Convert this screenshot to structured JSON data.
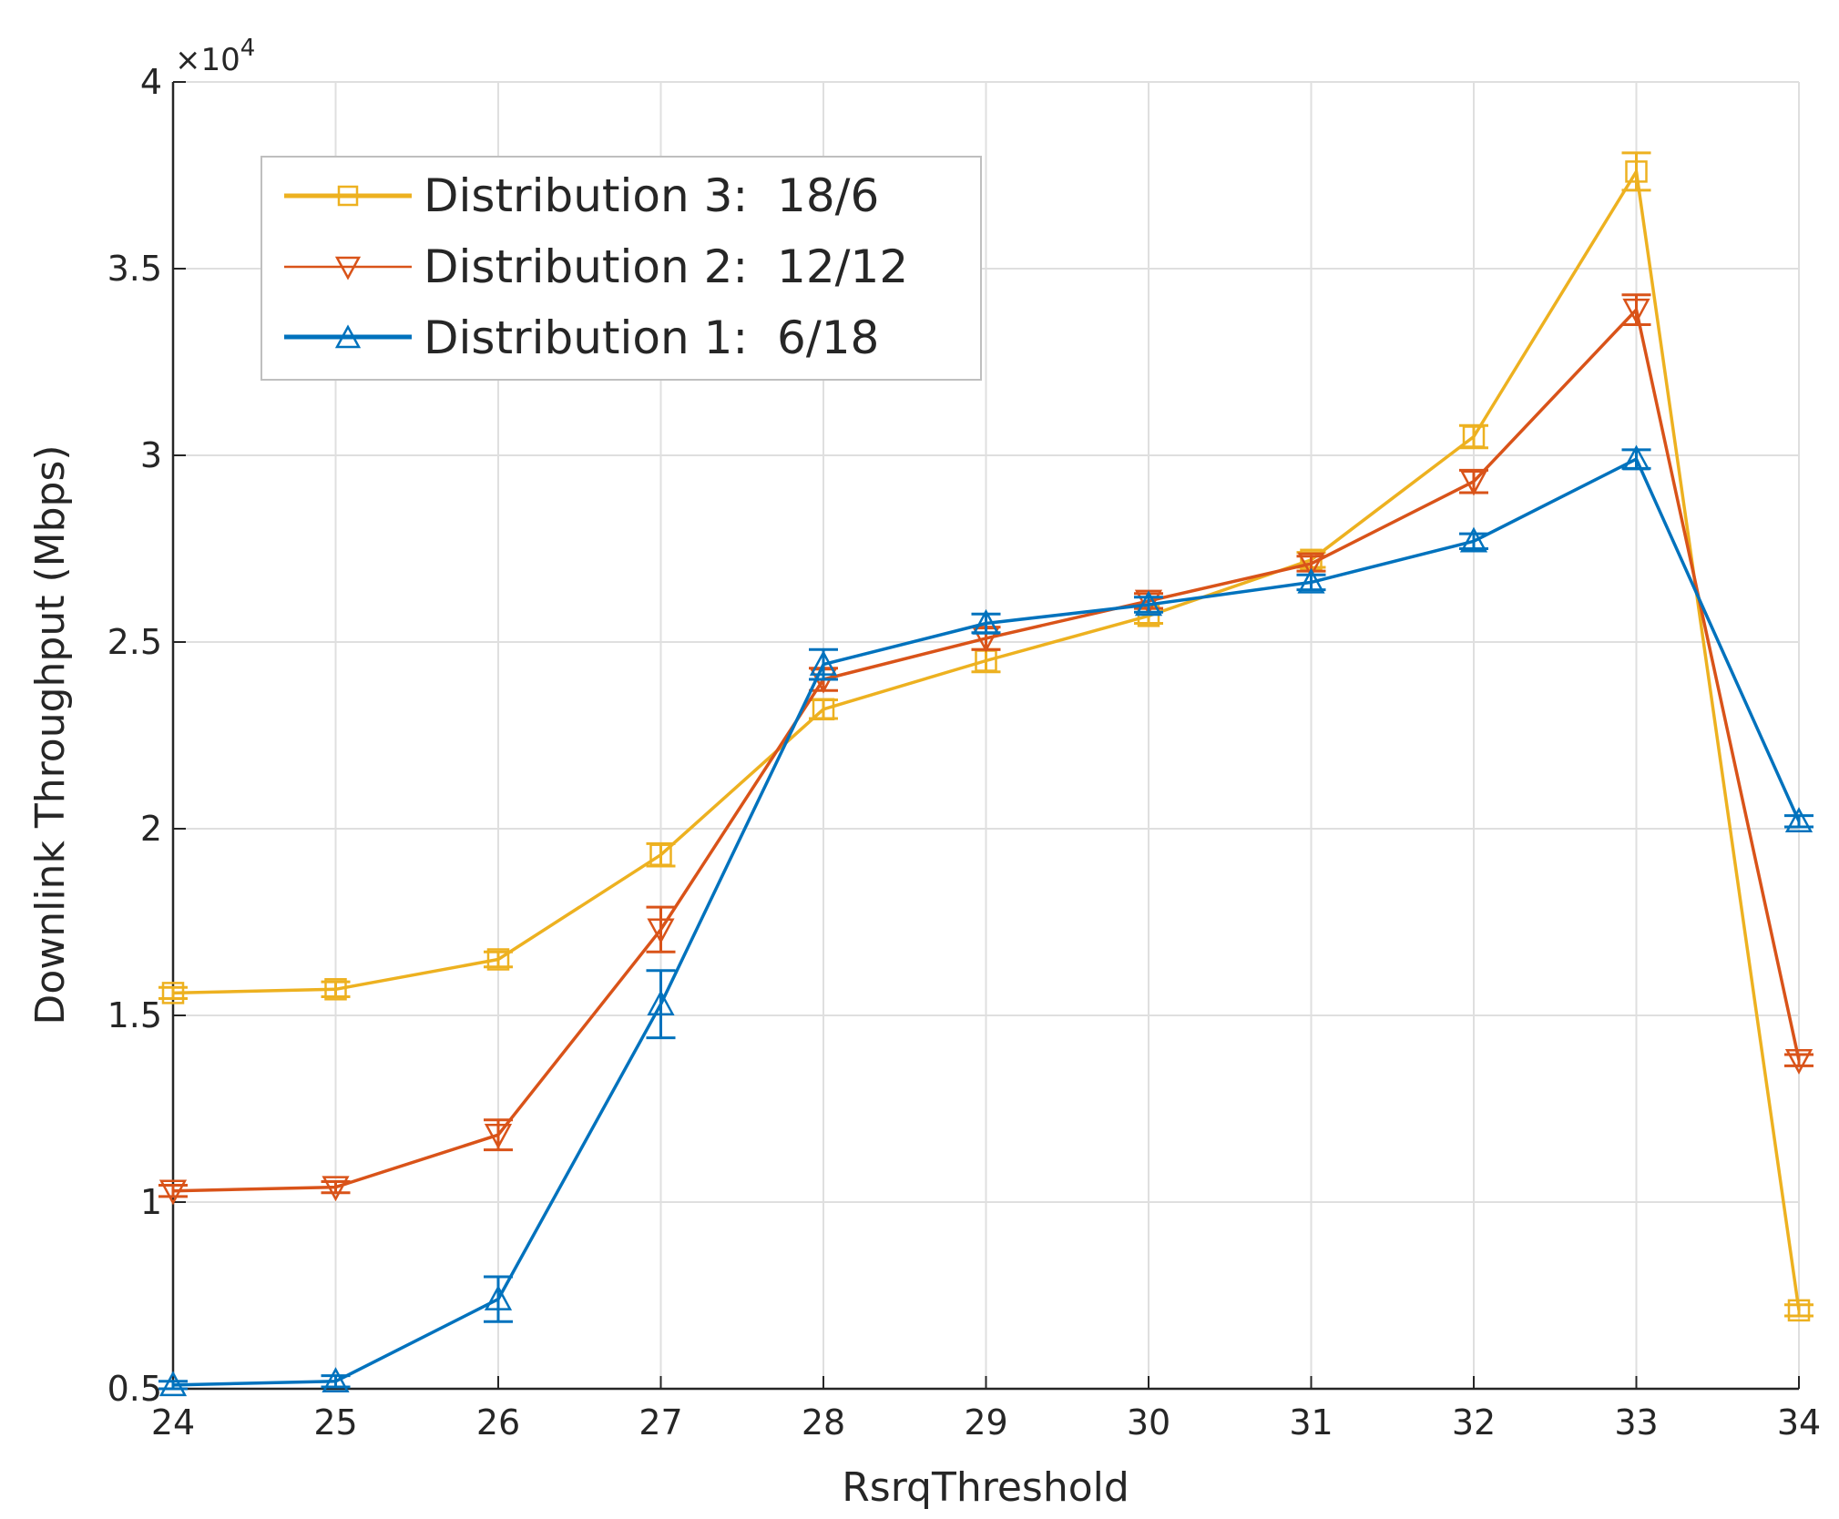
{
  "chart_data": {
    "type": "line",
    "title": "",
    "xlabel": "RsrqThreshold",
    "ylabel": "Downlink Throughput (Mbps)",
    "x": [
      24,
      25,
      26,
      27,
      28,
      29,
      30,
      31,
      32,
      33,
      34
    ],
    "xlim": [
      24,
      34
    ],
    "ylim": [
      5000,
      40000
    ],
    "y_scale_exponent_label": "×10",
    "y_scale_exponent_power": "4",
    "xticks": [
      {
        "value": 24,
        "label": "24"
      },
      {
        "value": 25,
        "label": "25"
      },
      {
        "value": 26,
        "label": "26"
      },
      {
        "value": 27,
        "label": "27"
      },
      {
        "value": 28,
        "label": "28"
      },
      {
        "value": 29,
        "label": "29"
      },
      {
        "value": 30,
        "label": "30"
      },
      {
        "value": 31,
        "label": "31"
      },
      {
        "value": 32,
        "label": "32"
      },
      {
        "value": 33,
        "label": "33"
      },
      {
        "value": 34,
        "label": "34"
      }
    ],
    "yticks": [
      {
        "value": 5000,
        "label": "0.5"
      },
      {
        "value": 10000,
        "label": "1"
      },
      {
        "value": 15000,
        "label": "1.5"
      },
      {
        "value": 20000,
        "label": "2"
      },
      {
        "value": 25000,
        "label": "2.5"
      },
      {
        "value": 30000,
        "label": "3"
      },
      {
        "value": 35000,
        "label": "3.5"
      },
      {
        "value": 40000,
        "label": "4"
      }
    ],
    "grid": true,
    "legend_position": "top-left",
    "series": [
      {
        "name": "Distribution 3:  18/6",
        "color": "#EDB120",
        "marker": "square",
        "values": [
          15600,
          15700,
          16500,
          19300,
          23200,
          24500,
          25700,
          27200,
          30500,
          37600,
          7100
        ],
        "errors": [
          150,
          200,
          200,
          300,
          250,
          300,
          200,
          200,
          300,
          500,
          150
        ]
      },
      {
        "name": "Distribution 2:  12/12",
        "color": "#D95319",
        "marker": "triangle-down",
        "values": [
          10300,
          10400,
          11800,
          17300,
          24000,
          25100,
          26100,
          27100,
          29300,
          33900,
          13800
        ],
        "errors": [
          150,
          150,
          400,
          600,
          300,
          300,
          200,
          200,
          300,
          400,
          150
        ]
      },
      {
        "name": "Distribution 1:  6/18",
        "color": "#0072BD",
        "marker": "triangle-up",
        "values": [
          5100,
          5200,
          7400,
          15300,
          24400,
          25500,
          26000,
          26600,
          27700,
          29900,
          20200
        ],
        "errors": [
          100,
          150,
          600,
          900,
          400,
          250,
          200,
          200,
          200,
          250,
          150
        ]
      }
    ]
  }
}
